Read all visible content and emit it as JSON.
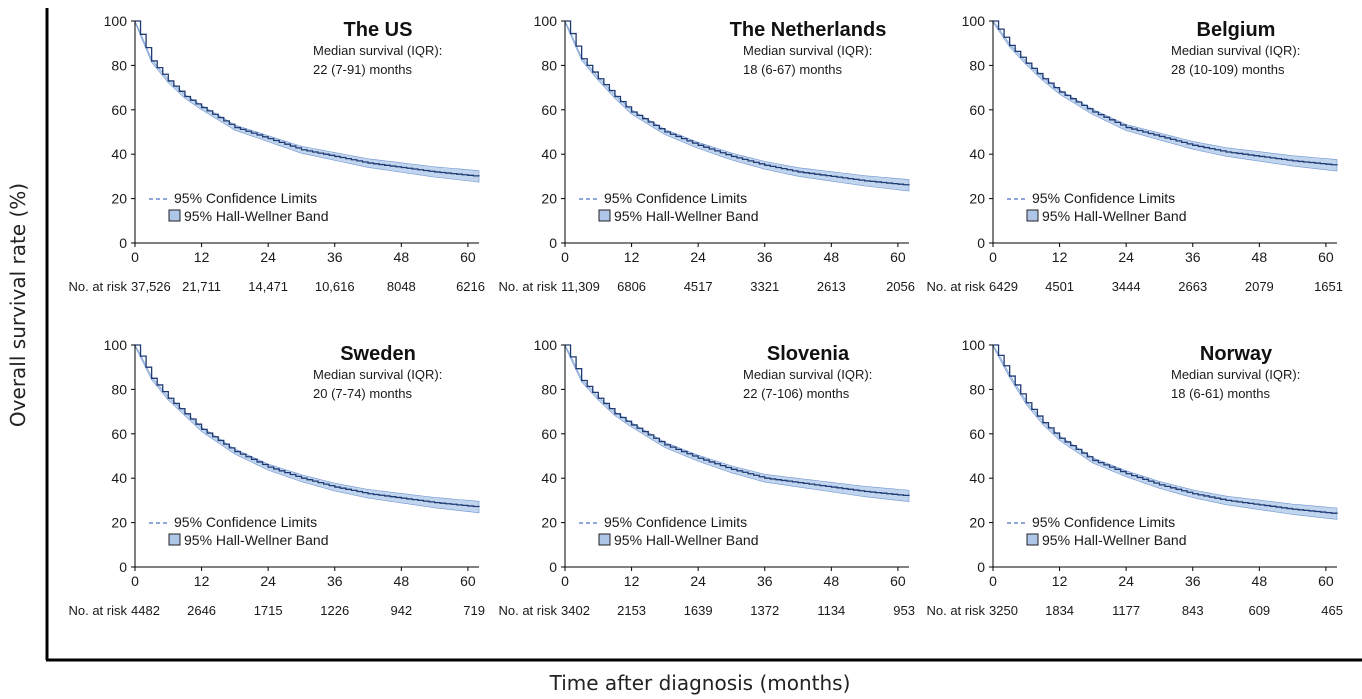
{
  "figure": {
    "ylabel": "Overall survival rate (%)",
    "xlabel": "Time after diagnosis (months)",
    "at_risk_label": "No. at risk",
    "median_label": "Median survival (IQR):",
    "legend": {
      "ci": "95% Confidence Limits",
      "band": "95% Hall-Wellner Band"
    }
  },
  "colors": {
    "line": "#1f3b73",
    "band": "#aec7e8",
    "band_edge": "#6f95d0",
    "ci": "#4a72c4"
  },
  "chart_data": [
    {
      "type": "line",
      "title": "The US",
      "median_text": "22 (7-91) months",
      "x": [
        0,
        3,
        6,
        9,
        12,
        18,
        24,
        30,
        36,
        42,
        48,
        54,
        62
      ],
      "y": [
        100,
        82,
        73,
        66,
        61,
        52,
        47,
        42,
        39,
        36,
        34,
        32,
        30
      ],
      "xlim": [
        0,
        62
      ],
      "ylim": [
        0,
        100
      ],
      "xticks": [
        0,
        12,
        24,
        36,
        48,
        60
      ],
      "yticks": [
        0,
        20,
        40,
        60,
        80,
        100
      ],
      "at_risk": [
        "37,526",
        "21,711",
        "14,471",
        "10,616",
        "8048",
        "6216"
      ]
    },
    {
      "type": "line",
      "title": "The Netherlands",
      "median_text": "18 (6-67) months",
      "x": [
        0,
        3,
        6,
        9,
        12,
        18,
        24,
        30,
        36,
        42,
        48,
        54,
        62
      ],
      "y": [
        100,
        83,
        74,
        66,
        59,
        50,
        44,
        39,
        35,
        32,
        30,
        28,
        26
      ],
      "xlim": [
        0,
        62
      ],
      "ylim": [
        0,
        100
      ],
      "xticks": [
        0,
        12,
        24,
        36,
        48,
        60
      ],
      "yticks": [
        0,
        20,
        40,
        60,
        80,
        100
      ],
      "at_risk": [
        "11,309",
        "6806",
        "4517",
        "3321",
        "2613",
        "2056"
      ]
    },
    {
      "type": "line",
      "title": "Belgium",
      "median_text": "28 (10-109) months",
      "x": [
        0,
        3,
        6,
        9,
        12,
        18,
        24,
        30,
        36,
        42,
        48,
        54,
        62
      ],
      "y": [
        100,
        89,
        81,
        74,
        68,
        59,
        52,
        48,
        44,
        41,
        39,
        37,
        35
      ],
      "xlim": [
        0,
        62
      ],
      "ylim": [
        0,
        100
      ],
      "xticks": [
        0,
        12,
        24,
        36,
        48,
        60
      ],
      "yticks": [
        0,
        20,
        40,
        60,
        80,
        100
      ],
      "at_risk": [
        "6429",
        "4501",
        "3444",
        "2663",
        "2079",
        "1651"
      ]
    },
    {
      "type": "line",
      "title": "Sweden",
      "median_text": "20 (7-74) months",
      "x": [
        0,
        3,
        6,
        9,
        12,
        18,
        24,
        30,
        36,
        42,
        48,
        54,
        62
      ],
      "y": [
        100,
        85,
        76,
        69,
        62,
        52,
        45,
        40,
        36,
        33,
        31,
        29,
        27
      ],
      "xlim": [
        0,
        62
      ],
      "ylim": [
        0,
        100
      ],
      "xticks": [
        0,
        12,
        24,
        36,
        48,
        60
      ],
      "yticks": [
        0,
        20,
        40,
        60,
        80,
        100
      ],
      "at_risk": [
        "4482",
        "2646",
        "1715",
        "1226",
        "942",
        "719"
      ]
    },
    {
      "type": "line",
      "title": "Slovenia",
      "median_text": "22 (7-106) months",
      "x": [
        0,
        3,
        6,
        9,
        12,
        18,
        24,
        30,
        36,
        42,
        48,
        54,
        62
      ],
      "y": [
        100,
        84,
        76,
        69,
        64,
        55,
        49,
        44,
        40,
        38,
        36,
        34,
        32
      ],
      "xlim": [
        0,
        62
      ],
      "ylim": [
        0,
        100
      ],
      "xticks": [
        0,
        12,
        24,
        36,
        48,
        60
      ],
      "yticks": [
        0,
        20,
        40,
        60,
        80,
        100
      ],
      "at_risk": [
        "3402",
        "2153",
        "1639",
        "1372",
        "1134",
        "953"
      ]
    },
    {
      "type": "line",
      "title": "Norway",
      "median_text": "18 (6-61) months",
      "x": [
        0,
        3,
        6,
        9,
        12,
        18,
        24,
        30,
        36,
        42,
        48,
        54,
        62
      ],
      "y": [
        100,
        86,
        74,
        65,
        58,
        48,
        42,
        37,
        33,
        30,
        28,
        26,
        24
      ],
      "xlim": [
        0,
        62
      ],
      "ylim": [
        0,
        100
      ],
      "xticks": [
        0,
        12,
        24,
        36,
        48,
        60
      ],
      "yticks": [
        0,
        20,
        40,
        60,
        80,
        100
      ],
      "at_risk": [
        "3250",
        "1834",
        "1177",
        "843",
        "609",
        "465"
      ]
    }
  ]
}
